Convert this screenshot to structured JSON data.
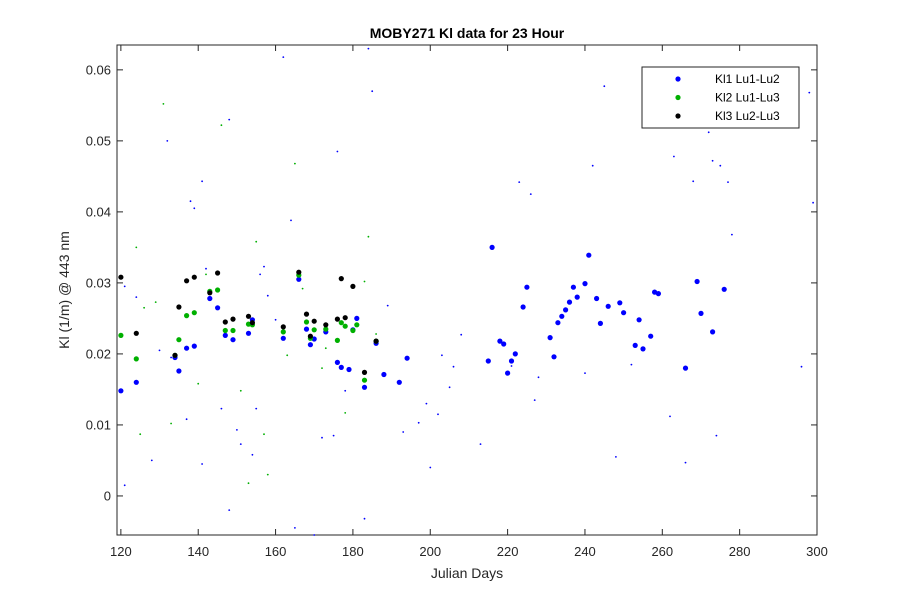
{
  "chart_data": {
    "type": "scatter",
    "title": "MOBY271   Kl data for 23 Hour",
    "xlabel": "Julian Days",
    "ylabel": "Kl (1/m) @ 443 nm",
    "xlim": [
      119,
      300
    ],
    "ylim": [
      -0.0055,
      0.0635
    ],
    "xticks": [
      120,
      140,
      160,
      180,
      200,
      220,
      240,
      260,
      280,
      300
    ],
    "yticks": [
      0,
      0.01,
      0.02,
      0.03,
      0.04,
      0.05,
      0.06
    ],
    "ytick_labels": [
      "0",
      "0.01",
      "0.02",
      "0.03",
      "0.04",
      "0.05",
      "0.06"
    ],
    "grid": false,
    "legend_position": "top-right",
    "colors": {
      "Kl1": "#0000ff",
      "Kl2": "#00b000",
      "Kl3": "#000000"
    },
    "series": [
      {
        "name": "Kl1 Lu1-Lu2",
        "color": "#0000ff",
        "points": [
          [
            120,
            0.0148
          ],
          [
            124,
            0.016
          ],
          [
            134,
            0.0195
          ],
          [
            135,
            0.0176
          ],
          [
            137,
            0.0208
          ],
          [
            139,
            0.0211
          ],
          [
            143,
            0.0278
          ],
          [
            145,
            0.0265
          ],
          [
            147,
            0.0226
          ],
          [
            149,
            0.022
          ],
          [
            153,
            0.0229
          ],
          [
            154,
            0.0248
          ],
          [
            162,
            0.0222
          ],
          [
            166,
            0.0305
          ],
          [
            168,
            0.0235
          ],
          [
            169,
            0.0213
          ],
          [
            170,
            0.0221
          ],
          [
            173,
            0.0231
          ],
          [
            176,
            0.0188
          ],
          [
            177,
            0.0181
          ],
          [
            179,
            0.0178
          ],
          [
            180,
            0.0234
          ],
          [
            181,
            0.025
          ],
          [
            183,
            0.0153
          ],
          [
            186,
            0.0215
          ],
          [
            188,
            0.0171
          ],
          [
            192,
            0.016
          ],
          [
            194,
            0.0194
          ],
          [
            215,
            0.019
          ],
          [
            216,
            0.035
          ],
          [
            218,
            0.0218
          ],
          [
            219,
            0.0214
          ],
          [
            220,
            0.0173
          ],
          [
            221,
            0.019
          ],
          [
            222,
            0.02
          ],
          [
            224,
            0.0266
          ],
          [
            225,
            0.0294
          ],
          [
            231,
            0.0223
          ],
          [
            232,
            0.0196
          ],
          [
            233,
            0.0244
          ],
          [
            234,
            0.0253
          ],
          [
            235,
            0.0262
          ],
          [
            236,
            0.0273
          ],
          [
            237,
            0.0294
          ],
          [
            238,
            0.028
          ],
          [
            240,
            0.0299
          ],
          [
            241,
            0.0339
          ],
          [
            243,
            0.0278
          ],
          [
            244,
            0.0243
          ],
          [
            246,
            0.0267
          ],
          [
            249,
            0.0272
          ],
          [
            250,
            0.0258
          ],
          [
            253,
            0.0212
          ],
          [
            254,
            0.0248
          ],
          [
            255,
            0.0207
          ],
          [
            257,
            0.0225
          ],
          [
            258,
            0.0287
          ],
          [
            259,
            0.0285
          ],
          [
            266,
            0.018
          ],
          [
            269,
            0.0302
          ],
          [
            270,
            0.0257
          ],
          [
            273,
            0.0231
          ],
          [
            276,
            0.0291
          ]
        ]
      },
      {
        "name": "Kl2 Lu1-Lu3",
        "color": "#00b000",
        "points": [
          [
            120,
            0.0226
          ],
          [
            124,
            0.0193
          ],
          [
            134,
            0.0198
          ],
          [
            135,
            0.022
          ],
          [
            137,
            0.0254
          ],
          [
            139,
            0.0258
          ],
          [
            143,
            0.0288
          ],
          [
            145,
            0.029
          ],
          [
            147,
            0.0233
          ],
          [
            149,
            0.0233
          ],
          [
            153,
            0.0242
          ],
          [
            154,
            0.0241
          ],
          [
            162,
            0.0231
          ],
          [
            166,
            0.0311
          ],
          [
            168,
            0.0245
          ],
          [
            169,
            0.0222
          ],
          [
            170,
            0.0234
          ],
          [
            173,
            0.0235
          ],
          [
            176,
            0.0219
          ],
          [
            177,
            0.0244
          ],
          [
            178,
            0.0239
          ],
          [
            180,
            0.0233
          ],
          [
            181,
            0.0241
          ],
          [
            183,
            0.0163
          ],
          [
            186,
            0.0218
          ]
        ]
      },
      {
        "name": "Kl3 Lu2-Lu3",
        "color": "#000000",
        "points": [
          [
            120,
            0.0308
          ],
          [
            124,
            0.0229
          ],
          [
            134,
            0.0198
          ],
          [
            135,
            0.0266
          ],
          [
            137,
            0.0303
          ],
          [
            139,
            0.0308
          ],
          [
            143,
            0.0286
          ],
          [
            145,
            0.0314
          ],
          [
            147,
            0.0245
          ],
          [
            149,
            0.0249
          ],
          [
            153,
            0.0253
          ],
          [
            154,
            0.0244
          ],
          [
            162,
            0.0238
          ],
          [
            166,
            0.0315
          ],
          [
            168,
            0.0256
          ],
          [
            169,
            0.0225
          ],
          [
            170,
            0.0246
          ],
          [
            173,
            0.0241
          ],
          [
            176,
            0.0249
          ],
          [
            177,
            0.0306
          ],
          [
            178,
            0.0251
          ],
          [
            180,
            0.0295
          ],
          [
            183,
            0.0174
          ],
          [
            186,
            0.0218
          ]
        ]
      },
      {
        "name": "",
        "color": "#0000ff",
        "marker": "small",
        "points": [
          [
            121,
            0.0295
          ],
          [
            121,
            0.0015
          ],
          [
            124,
            0.028
          ],
          [
            128,
            0.005
          ],
          [
            130,
            0.0205
          ],
          [
            132,
            0.05
          ],
          [
            133,
            0.0195
          ],
          [
            137,
            0.0108
          ],
          [
            138,
            0.0415
          ],
          [
            139,
            0.0405
          ],
          [
            141,
            0.0443
          ],
          [
            141,
            0.0045
          ],
          [
            142,
            0.032
          ],
          [
            146,
            0.0123
          ],
          [
            148,
            0.053
          ],
          [
            148,
            -0.002
          ],
          [
            150,
            0.0093
          ],
          [
            151,
            0.0073
          ],
          [
            154,
            0.0058
          ],
          [
            155,
            0.0123
          ],
          [
            156,
            0.0312
          ],
          [
            157,
            0.0323
          ],
          [
            158,
            0.0282
          ],
          [
            160,
            0.0248
          ],
          [
            162,
            0.0618
          ],
          [
            164,
            0.0388
          ],
          [
            165,
            -0.0045
          ],
          [
            170,
            -0.0055
          ],
          [
            172,
            0.0082
          ],
          [
            175,
            0.0085
          ],
          [
            176,
            0.0485
          ],
          [
            178,
            0.0148
          ],
          [
            183,
            -0.0032
          ],
          [
            184,
            0.063
          ],
          [
            185,
            0.057
          ],
          [
            189,
            0.0268
          ],
          [
            193,
            0.009
          ],
          [
            197,
            0.0103
          ],
          [
            199,
            0.013
          ],
          [
            200,
            0.004
          ],
          [
            202,
            0.0115
          ],
          [
            203,
            0.0198
          ],
          [
            205,
            0.0153
          ],
          [
            206,
            0.0182
          ],
          [
            208,
            0.0227
          ],
          [
            213,
            0.0073
          ],
          [
            221,
            0.0183
          ],
          [
            223,
            0.0442
          ],
          [
            226,
            0.0425
          ],
          [
            227,
            0.0135
          ],
          [
            228,
            0.0167
          ],
          [
            240,
            0.0173
          ],
          [
            242,
            0.0465
          ],
          [
            245,
            0.0577
          ],
          [
            248,
            0.0055
          ],
          [
            252,
            0.0185
          ],
          [
            262,
            0.0112
          ],
          [
            263,
            0.0478
          ],
          [
            266,
            0.0047
          ],
          [
            268,
            0.0443
          ],
          [
            272,
            0.0512
          ],
          [
            273,
            0.0472
          ],
          [
            274,
            0.0085
          ],
          [
            275,
            0.0465
          ],
          [
            277,
            0.0442
          ],
          [
            278,
            0.0368
          ],
          [
            296,
            0.0182
          ],
          [
            298,
            0.0568
          ],
          [
            299,
            0.0413
          ]
        ]
      },
      {
        "name": "",
        "color": "#00b000",
        "marker": "small",
        "points": [
          [
            124,
            0.035
          ],
          [
            125,
            0.0087
          ],
          [
            126,
            0.0265
          ],
          [
            129,
            0.0273
          ],
          [
            131,
            0.0552
          ],
          [
            133,
            0.0102
          ],
          [
            140,
            0.0158
          ],
          [
            142,
            0.0312
          ],
          [
            146,
            0.0522
          ],
          [
            151,
            0.0148
          ],
          [
            153,
            0.0018
          ],
          [
            155,
            0.0358
          ],
          [
            157,
            0.0087
          ],
          [
            158,
            0.003
          ],
          [
            163,
            0.0198
          ],
          [
            165,
            0.0468
          ],
          [
            167,
            0.0292
          ],
          [
            172,
            0.018
          ],
          [
            173,
            0.0208
          ],
          [
            178,
            0.0117
          ],
          [
            183,
            0.0302
          ],
          [
            184,
            0.0365
          ],
          [
            186,
            0.0228
          ]
        ]
      }
    ]
  }
}
